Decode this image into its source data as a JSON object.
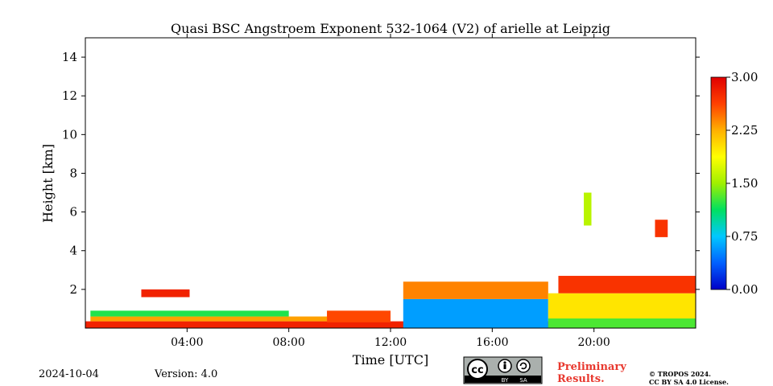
{
  "chart_data": {
    "type": "heatmap",
    "title": "Quasi BSC Angstroem Exponent 532-1064 (V2) of arielle at Leipzig",
    "xlabel": "Time [UTC]",
    "ylabel": "Height [km]",
    "xlim_hours": [
      0,
      24
    ],
    "ylim_km": [
      0,
      15
    ],
    "x_ticks": [
      {
        "hour": 4,
        "label": "04:00"
      },
      {
        "hour": 8,
        "label": "08:00"
      },
      {
        "hour": 12,
        "label": "12:00"
      },
      {
        "hour": 16,
        "label": "16:00"
      },
      {
        "hour": 20,
        "label": "20:00"
      }
    ],
    "y_ticks": [
      {
        "value": 2,
        "label": "2"
      },
      {
        "value": 4,
        "label": "4"
      },
      {
        "value": 6,
        "label": "6"
      },
      {
        "value": 8,
        "label": "8"
      },
      {
        "value": 10,
        "label": "10"
      },
      {
        "value": 12,
        "label": "12"
      },
      {
        "value": 14,
        "label": "14"
      }
    ],
    "colorbar": {
      "range": [
        0.0,
        3.0
      ],
      "ticks": [
        "3.00",
        "2.25",
        "1.50",
        "0.75",
        "0.00"
      ],
      "colormap": [
        "#0000c8",
        "#0060ff",
        "#00c8ff",
        "#00e060",
        "#a0f000",
        "#ffff00",
        "#ffb000",
        "#ff4000",
        "#e00000"
      ]
    },
    "regions": [
      {
        "t0": 0.0,
        "t1": 24.0,
        "h0": 0.0,
        "h1": 0.35,
        "value": 2.8
      },
      {
        "t0": 0.2,
        "t1": 9.5,
        "h0": 0.35,
        "h1": 0.6,
        "value": 2.3
      },
      {
        "t0": 0.2,
        "t1": 8.0,
        "h0": 0.6,
        "h1": 0.9,
        "value": 1.2
      },
      {
        "t0": 2.2,
        "t1": 4.1,
        "h0": 1.6,
        "h1": 2.0,
        "value": 2.8
      },
      {
        "t0": 9.5,
        "t1": 12.0,
        "h0": 0.3,
        "h1": 0.9,
        "value": 2.6
      },
      {
        "t0": 12.5,
        "t1": 18.2,
        "h0": 0.0,
        "h1": 1.5,
        "value": 0.6
      },
      {
        "t0": 12.5,
        "t1": 18.2,
        "h0": 1.5,
        "h1": 2.4,
        "value": 2.4
      },
      {
        "t0": 18.2,
        "t1": 24.0,
        "h0": 0.0,
        "h1": 0.5,
        "value": 1.3
      },
      {
        "t0": 18.2,
        "t1": 24.0,
        "h0": 0.5,
        "h1": 1.8,
        "value": 2.0
      },
      {
        "t0": 18.6,
        "t1": 24.0,
        "h0": 1.8,
        "h1": 2.7,
        "value": 2.7
      },
      {
        "t0": 19.6,
        "t1": 19.9,
        "h0": 5.3,
        "h1": 7.0,
        "value": 1.6
      },
      {
        "t0": 22.4,
        "t1": 22.9,
        "h0": 4.7,
        "h1": 5.6,
        "value": 2.7
      }
    ]
  },
  "footer": {
    "date": "2024-10-04",
    "version": "Version: 4.0",
    "preliminary_line1": "Preliminary",
    "preliminary_line2": "Results.",
    "copyright_line1": "© TROPOS 2024.",
    "copyright_line2": "CC BY SA 4.0 License.",
    "cc_badge_by": "BY",
    "cc_badge_sa": "SA",
    "cc_badge_cc": "cc"
  }
}
